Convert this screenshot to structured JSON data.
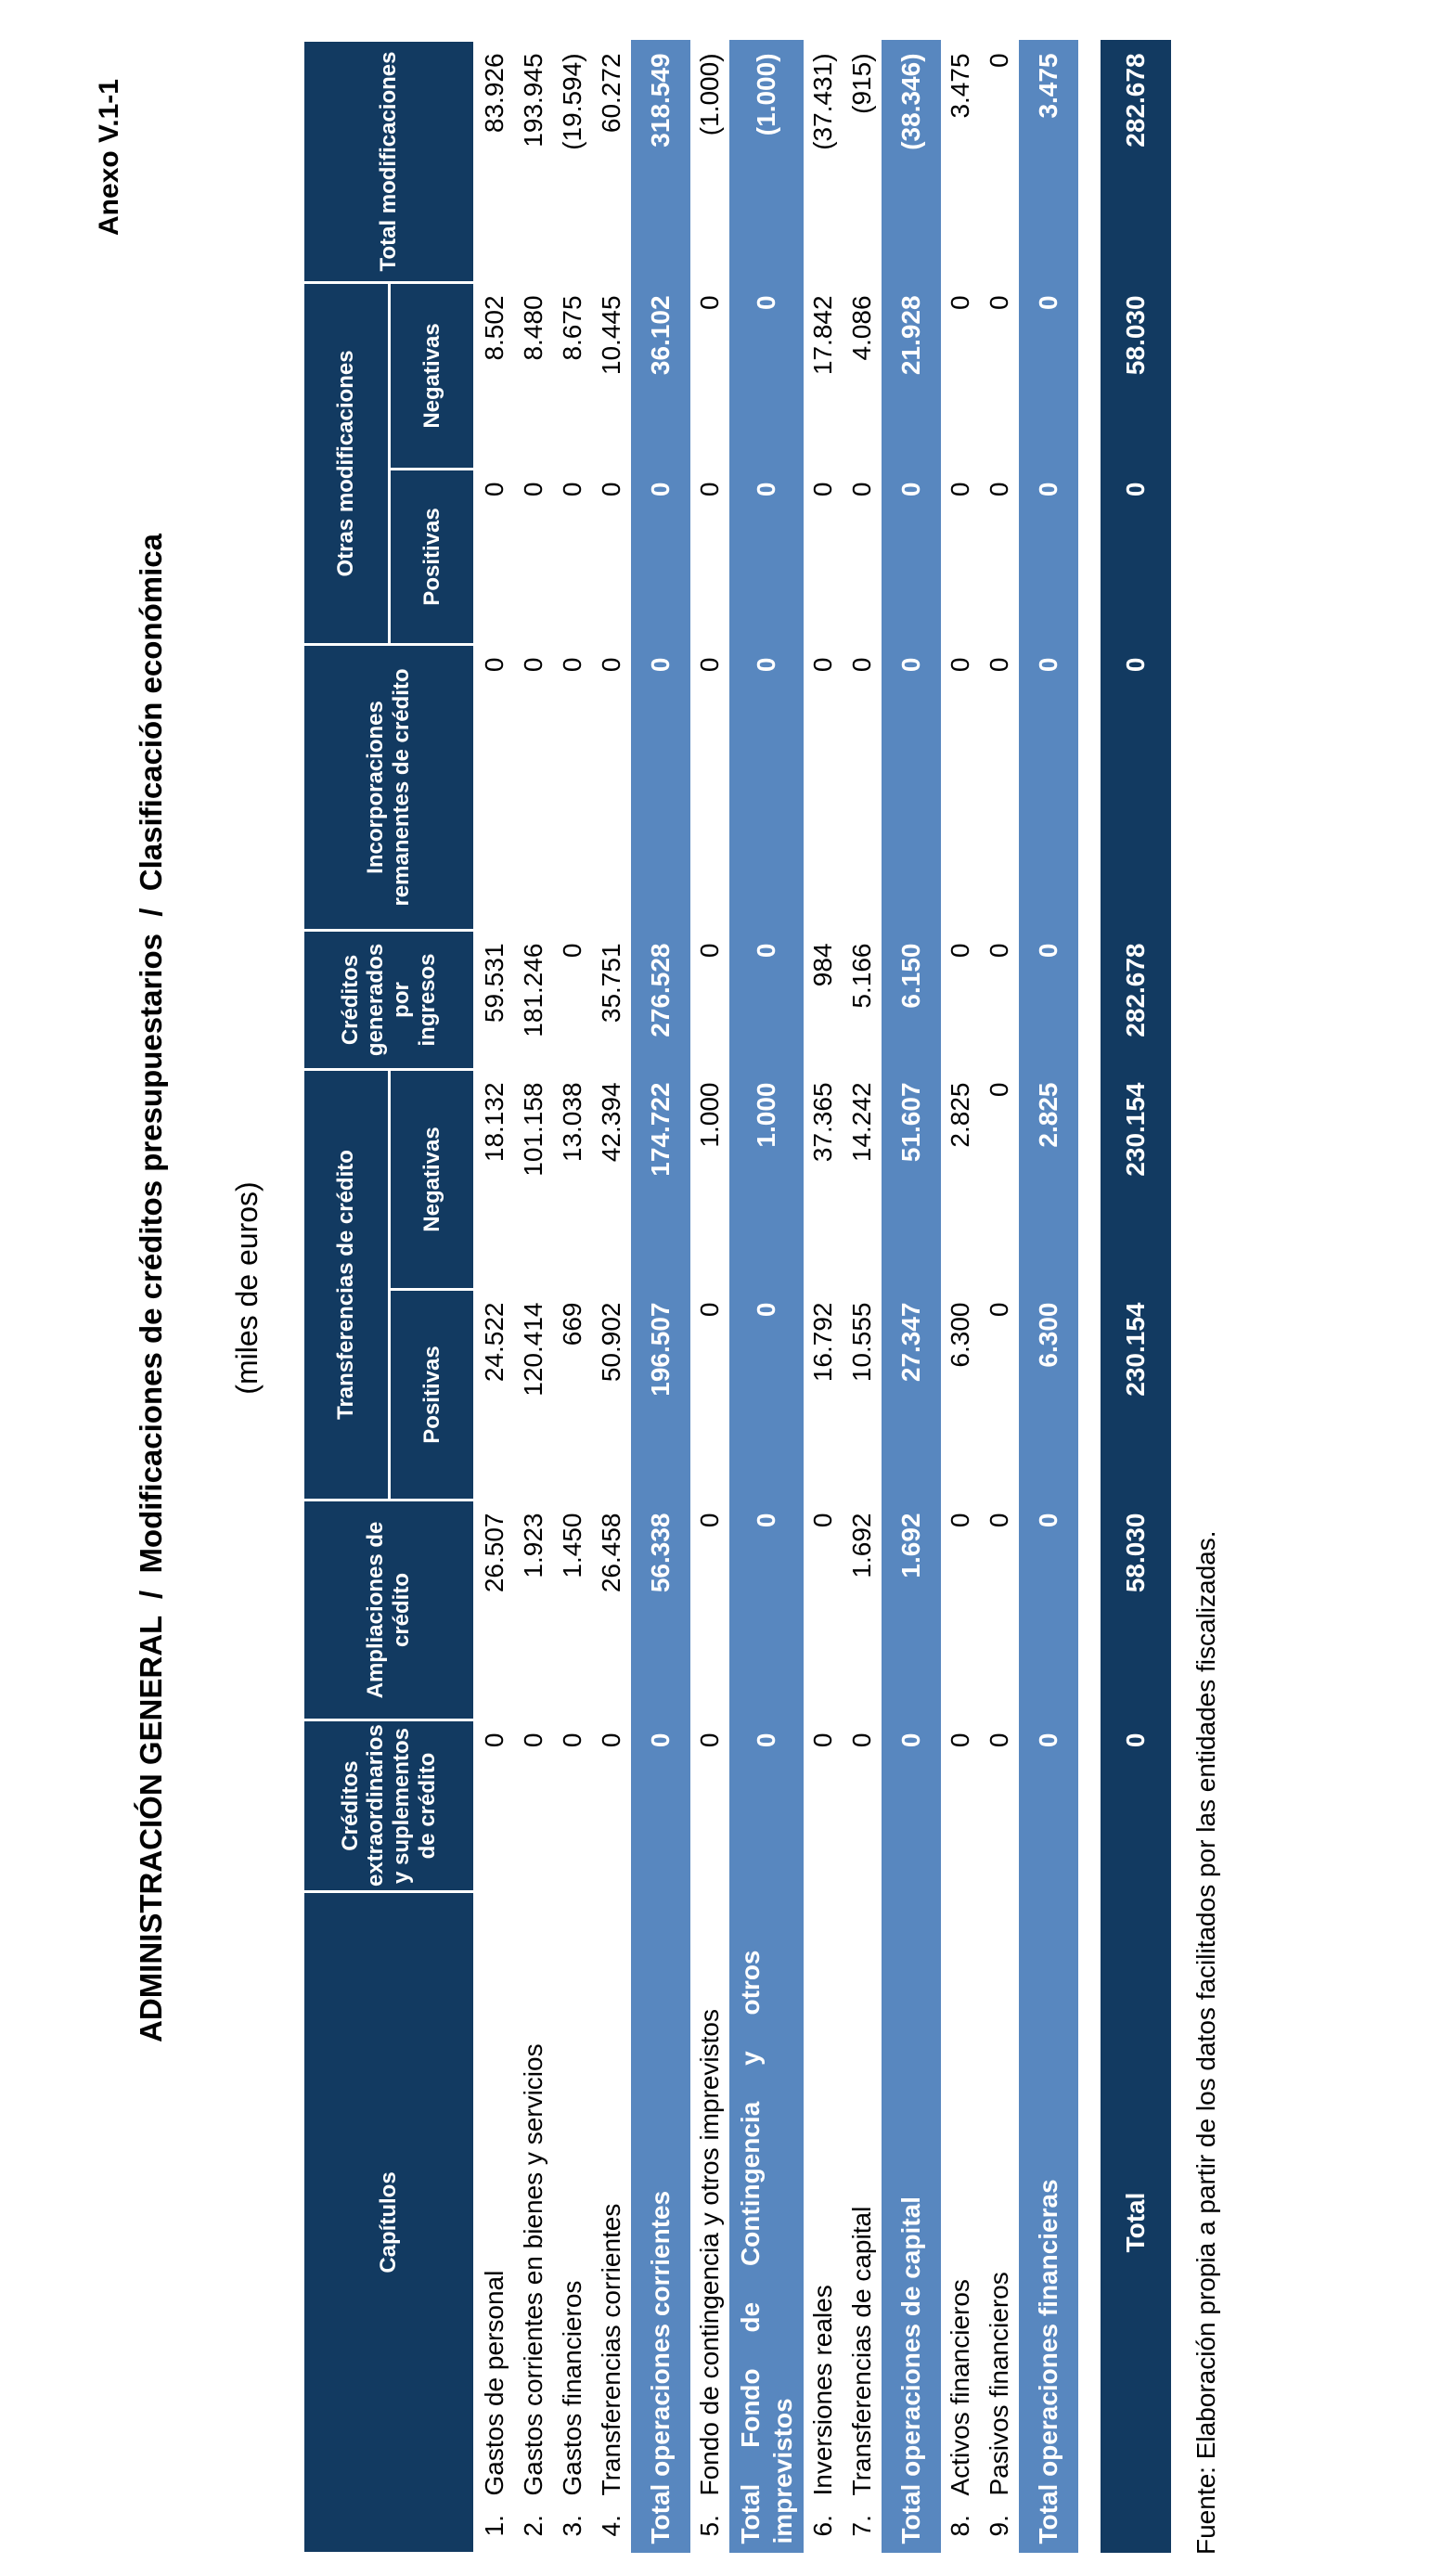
{
  "page": {
    "anexo": "Anexo V.1-1",
    "title": "ADMINISTRACIÓN GENERAL  /  Modificaciones de créditos presupuestarios  /  Clasificación económica",
    "subtitle": "(miles de euros)",
    "fuente": "Fuente: Elaboración propia a partir de los datos facilitados por las entidades fiscalizadas."
  },
  "colors": {
    "header_navy": "#123A61",
    "subtotal_blue": "#5887BF",
    "text_black": "#000000",
    "header_text_white": "#FFFFFF",
    "background": "#FFFFFF"
  },
  "table": {
    "headers": {
      "capitulos": "Capítulos",
      "cred_extra": "Créditos extraordinarios y suplementos de crédito",
      "ampliaciones": "Ampliaciones de crédito",
      "transferencias": "Transferencias de crédito",
      "positivas": "Positivas",
      "negativas": "Negativas",
      "cred_generados": "Créditos generados por ingresos",
      "incorporaciones": "Incorporaciones remanentes de crédito",
      "otras": "Otras modificaciones",
      "total_mod": "Total modificaciones"
    },
    "column_keys": [
      "cred_extra",
      "ampliaciones",
      "transf_positivas",
      "transf_negativas",
      "cred_generados",
      "incorporaciones",
      "otras_positivas",
      "otras_negativas",
      "total_modificaciones"
    ],
    "rows": [
      {
        "type": "data",
        "num": "1.",
        "label": "Gastos de personal",
        "values": [
          "0",
          "26.507",
          "24.522",
          "18.132",
          "59.531",
          "0",
          "0",
          "8.502",
          "83.926"
        ]
      },
      {
        "type": "data",
        "num": "2.",
        "label": "Gastos corrientes en bienes y servicios",
        "values": [
          "0",
          "1.923",
          "120.414",
          "101.158",
          "181.246",
          "0",
          "0",
          "8.480",
          "193.945"
        ]
      },
      {
        "type": "data",
        "num": "3.",
        "label": "Gastos financieros",
        "values": [
          "0",
          "1.450",
          "669",
          "13.038",
          "0",
          "0",
          "0",
          "8.675",
          "(19.594)"
        ]
      },
      {
        "type": "data",
        "num": "4.",
        "label": "Transferencias corrientes",
        "values": [
          "0",
          "26.458",
          "50.902",
          "42.394",
          "35.751",
          "0",
          "0",
          "10.445",
          "60.272"
        ]
      },
      {
        "type": "subtotal",
        "label": "Total operaciones corrientes",
        "values": [
          "0",
          "56.338",
          "196.507",
          "174.722",
          "276.528",
          "0",
          "0",
          "36.102",
          "318.549"
        ]
      },
      {
        "type": "data",
        "num": "5.",
        "label": "Fondo de contingencia y otros imprevistos",
        "values": [
          "0",
          "0",
          "0",
          "1.000",
          "0",
          "0",
          "0",
          "0",
          "(1.000)"
        ]
      },
      {
        "type": "subtotal",
        "two": true,
        "label": "Total Fondo de Contingencia y otros imprevistos",
        "values": [
          "0",
          "0",
          "0",
          "1.000",
          "0",
          "0",
          "0",
          "0",
          "(1.000)"
        ]
      },
      {
        "type": "data",
        "num": "6.",
        "label": "Inversiones reales",
        "values": [
          "0",
          "0",
          "16.792",
          "37.365",
          "984",
          "0",
          "0",
          "17.842",
          "(37.431)"
        ]
      },
      {
        "type": "data",
        "num": "7.",
        "label": "Transferencias de capital",
        "values": [
          "0",
          "1.692",
          "10.555",
          "14.242",
          "5.166",
          "0",
          "0",
          "4.086",
          "(915)"
        ]
      },
      {
        "type": "subtotal",
        "label": "Total operaciones de capital",
        "values": [
          "0",
          "1.692",
          "27.347",
          "51.607",
          "6.150",
          "0",
          "0",
          "21.928",
          "(38.346)"
        ]
      },
      {
        "type": "data",
        "num": "8.",
        "label": "Activos financieros",
        "values": [
          "0",
          "0",
          "6.300",
          "2.825",
          "0",
          "0",
          "0",
          "0",
          "3.475"
        ]
      },
      {
        "type": "data",
        "num": "9.",
        "label": "Pasivos financieros",
        "values": [
          "0",
          "0",
          "0",
          "0",
          "0",
          "0",
          "0",
          "0",
          "0"
        ]
      },
      {
        "type": "subtotal",
        "label": "Total operaciones financieras",
        "values": [
          "0",
          "0",
          "6.300",
          "2.825",
          "0",
          "0",
          "0",
          "0",
          "3.475"
        ]
      },
      {
        "type": "spacer"
      },
      {
        "type": "total",
        "label": "Total",
        "values": [
          "0",
          "58.030",
          "230.154",
          "230.154",
          "282.678",
          "0",
          "0",
          "58.030",
          "282.678"
        ]
      }
    ]
  }
}
